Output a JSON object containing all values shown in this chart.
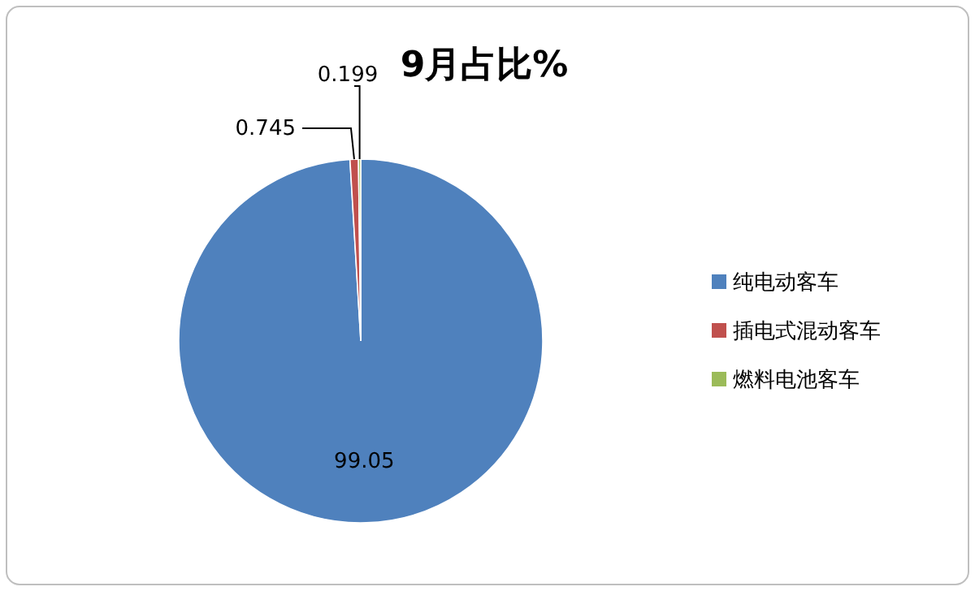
{
  "chart_data": {
    "type": "pie",
    "title": "9月占比%",
    "categories": [
      "纯电动客车",
      "插电式混动客车",
      "燃料电池客车"
    ],
    "values": [
      99.05,
      0.745,
      0.199
    ],
    "colors": [
      "#4f81bd",
      "#c0504d",
      "#9bbb59"
    ],
    "data_labels": true,
    "legend": "right"
  }
}
